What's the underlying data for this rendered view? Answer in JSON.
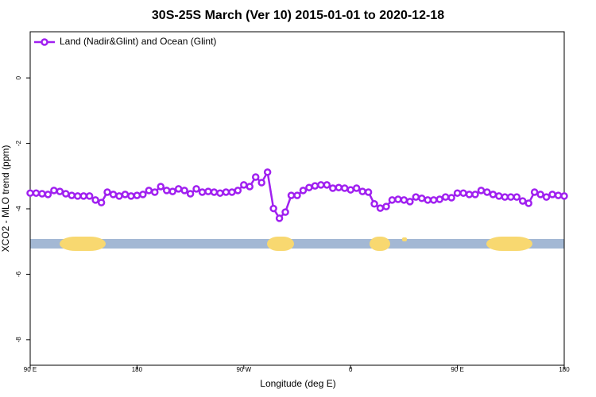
{
  "chart_data": {
    "type": "line",
    "title": "30S-25S March (Ver 10)   2015-01-01 to 2020-12-18",
    "xlabel": "Longitude (deg E)",
    "ylabel": "XCO2 - MLO trend (ppm)",
    "x": [
      90,
      95,
      100,
      105,
      110,
      115,
      120,
      125,
      130,
      135,
      140,
      145,
      150,
      155,
      160,
      165,
      170,
      175,
      180,
      185,
      190,
      195,
      200,
      205,
      210,
      215,
      220,
      225,
      230,
      235,
      240,
      245,
      250,
      255,
      260,
      265,
      270,
      275,
      280,
      285,
      290,
      295,
      300,
      305,
      310,
      315,
      320,
      325,
      330,
      335,
      340,
      345,
      350,
      355,
      360,
      365,
      370,
      375,
      380,
      385,
      390,
      395,
      400,
      405,
      410,
      415,
      420,
      425,
      430,
      435,
      440,
      445,
      450,
      455,
      460,
      465,
      470,
      475,
      480,
      485,
      490,
      495,
      500,
      505,
      510,
      515,
      520,
      525,
      530,
      535,
      540
    ],
    "series": [
      {
        "name": "Land (Nadir&Glint) and Ocean (Glint)",
        "color": "#a020f0",
        "values": [
          -3.52,
          -3.52,
          -3.54,
          -3.56,
          -3.44,
          -3.47,
          -3.54,
          -3.59,
          -3.61,
          -3.61,
          -3.61,
          -3.73,
          -3.81,
          -3.49,
          -3.56,
          -3.61,
          -3.56,
          -3.61,
          -3.59,
          -3.56,
          -3.44,
          -3.49,
          -3.32,
          -3.44,
          -3.47,
          -3.39,
          -3.44,
          -3.54,
          -3.39,
          -3.49,
          -3.47,
          -3.49,
          -3.52,
          -3.49,
          -3.49,
          -3.44,
          -3.27,
          -3.32,
          -3.03,
          -3.2,
          -2.88,
          -3.99,
          -4.29,
          -4.1,
          -3.59,
          -3.59,
          -3.44,
          -3.35,
          -3.3,
          -3.27,
          -3.27,
          -3.37,
          -3.35,
          -3.37,
          -3.42,
          -3.37,
          -3.47,
          -3.49,
          -3.85,
          -3.98,
          -3.93,
          -3.73,
          -3.71,
          -3.73,
          -3.78,
          -3.64,
          -3.68,
          -3.73,
          -3.73,
          -3.71,
          -3.64,
          -3.66,
          -3.52,
          -3.52,
          -3.56,
          -3.56,
          -3.44,
          -3.49,
          -3.56,
          -3.61,
          -3.64,
          -3.64,
          -3.64,
          -3.76,
          -3.83,
          -3.49,
          -3.56,
          -3.64,
          -3.56,
          -3.59,
          -3.61
        ]
      }
    ],
    "xlim": [
      90,
      540
    ],
    "xticks": [
      {
        "value": 90,
        "label": "90 E"
      },
      180,
      {
        "value": 270,
        "label": "90 W"
      },
      {
        "value": 360,
        "label": "0"
      },
      {
        "value": 450,
        "label": "90 E"
      },
      {
        "value": 540,
        "label": "180"
      }
    ],
    "ylim": [
      -8.78,
      1.41
    ],
    "yticks": [
      0,
      -2,
      -4,
      -6,
      -8
    ],
    "grid": false,
    "legend": "top-left"
  }
}
